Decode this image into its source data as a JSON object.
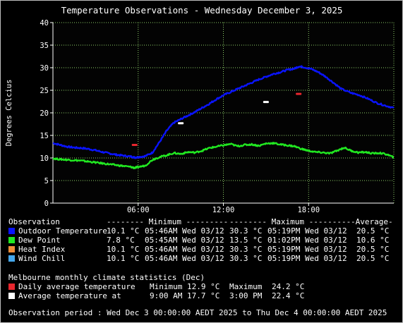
{
  "title": "Temperature Observations - Wednesday December 3, 2025",
  "colors": {
    "background": "#000000",
    "plot_background": "#030303",
    "grid": "#8fd06a",
    "axis": "#ffffff",
    "text": "#ffffff",
    "outdoor": "#0a14ff",
    "dewpoint": "#21e821",
    "heatindex": "#f08d38",
    "windchill": "#46a8ec",
    "daily_avg_marker": "#e8262e",
    "avg_temp_marker": "#ffffff"
  },
  "chart_data": {
    "type": "line",
    "title": "Temperature Observations - Wednesday December 3, 2025",
    "ylabel": "Degrees Celcius",
    "ylim": [
      0,
      40
    ],
    "y_ticks": [
      "0",
      "5",
      "10",
      "15",
      "20",
      "25",
      "30",
      "35",
      "40"
    ],
    "xlim_hours": [
      0,
      24
    ],
    "x_ticks": [
      {
        "hour": 6,
        "label": "06:00"
      },
      {
        "hour": 12,
        "label": "12:00"
      },
      {
        "hour": 18,
        "label": "18:00"
      }
    ],
    "grid": true,
    "series": [
      {
        "name": "Outdoor Temperature",
        "color": "#0a14ff",
        "points": [
          [
            0,
            13.3
          ],
          [
            0.5,
            12.9
          ],
          [
            1,
            12.5
          ],
          [
            1.5,
            12.3
          ],
          [
            2,
            12.2
          ],
          [
            2.5,
            12.0
          ],
          [
            3,
            11.7
          ],
          [
            3.5,
            11.3
          ],
          [
            4,
            11.0
          ],
          [
            4.5,
            10.7
          ],
          [
            5,
            10.5
          ],
          [
            5.5,
            10.3
          ],
          [
            5.77,
            10.1
          ],
          [
            6,
            10.2
          ],
          [
            6.5,
            10.4
          ],
          [
            7,
            11.2
          ],
          [
            7.5,
            13.5
          ],
          [
            8,
            16.0
          ],
          [
            8.5,
            17.8
          ],
          [
            9,
            18.6
          ],
          [
            9.5,
            19.4
          ],
          [
            10,
            20.2
          ],
          [
            10.5,
            21.1
          ],
          [
            11,
            22.0
          ],
          [
            11.5,
            23.0
          ],
          [
            12,
            23.9
          ],
          [
            12.5,
            24.6
          ],
          [
            13,
            25.3
          ],
          [
            13.5,
            26.0
          ],
          [
            14,
            26.7
          ],
          [
            14.5,
            27.4
          ],
          [
            15,
            28.0
          ],
          [
            15.5,
            28.6
          ],
          [
            16,
            29.0
          ],
          [
            16.5,
            29.5
          ],
          [
            17,
            29.8
          ],
          [
            17.32,
            30.3
          ],
          [
            17.7,
            30.1
          ],
          [
            18.2,
            29.7
          ],
          [
            18.7,
            29.0
          ],
          [
            19.2,
            28.0
          ],
          [
            19.7,
            26.8
          ],
          [
            20.3,
            25.3
          ],
          [
            21,
            24.4
          ],
          [
            21.6,
            23.9
          ],
          [
            22.2,
            23.1
          ],
          [
            22.8,
            22.2
          ],
          [
            23.4,
            21.6
          ],
          [
            24,
            21.1
          ]
        ]
      },
      {
        "name": "Dew Point",
        "color": "#21e821",
        "points": [
          [
            0,
            9.9
          ],
          [
            0.5,
            9.7
          ],
          [
            1,
            9.6
          ],
          [
            1.5,
            9.5
          ],
          [
            2,
            9.4
          ],
          [
            2.5,
            9.2
          ],
          [
            3,
            9.0
          ],
          [
            3.5,
            8.8
          ],
          [
            4,
            8.6
          ],
          [
            4.5,
            8.4
          ],
          [
            5,
            8.2
          ],
          [
            5.5,
            8.0
          ],
          [
            5.75,
            7.8
          ],
          [
            6,
            8.0
          ],
          [
            6.5,
            8.3
          ],
          [
            7,
            9.6
          ],
          [
            7.5,
            10.2
          ],
          [
            8,
            10.6
          ],
          [
            8.5,
            11.1
          ],
          [
            9,
            10.9
          ],
          [
            9.5,
            11.3
          ],
          [
            10,
            11.2
          ],
          [
            10.5,
            11.6
          ],
          [
            11,
            12.2
          ],
          [
            11.5,
            12.5
          ],
          [
            12,
            12.8
          ],
          [
            12.5,
            13.1
          ],
          [
            13,
            12.6
          ],
          [
            13.5,
            12.9
          ],
          [
            14,
            13.0
          ],
          [
            14.5,
            12.7
          ],
          [
            15,
            13.2
          ],
          [
            15.5,
            13.3
          ],
          [
            16,
            13.0
          ],
          [
            16.5,
            12.8
          ],
          [
            17,
            12.6
          ],
          [
            17.5,
            12.0
          ],
          [
            18,
            11.6
          ],
          [
            18.5,
            11.3
          ],
          [
            19,
            11.2
          ],
          [
            19.5,
            11.0
          ],
          [
            20,
            11.6
          ],
          [
            20.5,
            12.3
          ],
          [
            21,
            11.6
          ],
          [
            21.5,
            11.2
          ],
          [
            22,
            11.3
          ],
          [
            22.5,
            11.0
          ],
          [
            23,
            11.1
          ],
          [
            23.5,
            10.8
          ],
          [
            24,
            10.1
          ]
        ]
      }
    ],
    "markers": [
      {
        "name": "Daily average temperature",
        "color": "#e8262e",
        "hour": 5.75,
        "value": 12.9
      },
      {
        "name": "Daily average temperature",
        "color": "#e8262e",
        "hour": 17.3,
        "value": 24.2
      },
      {
        "name": "Average temperature at",
        "color": "#ffffff",
        "hour": 9.0,
        "value": 17.7
      },
      {
        "name": "Average temperature at",
        "color": "#ffffff",
        "hour": 15.0,
        "value": 22.4
      }
    ]
  },
  "stats": {
    "header": {
      "observation": "Observation",
      "minimum": "-------- Minimum ---------",
      "maximum": "-------- Maximum ---------",
      "average": "-Average-"
    },
    "rows": [
      {
        "name": "Outdoor Temperature",
        "color": "#0a14ff",
        "min": "10.1 °C",
        "min_time": "05:46AM Wed 03/12",
        "max": "30.3 °C",
        "max_time": "05:19PM Wed 03/12",
        "avg": "20.5 °C"
      },
      {
        "name": "Dew Point",
        "color": "#21e821",
        "min": "7.8 °C",
        "min_time": "05:45AM Wed 03/12",
        "max": "13.5 °C",
        "max_time": "01:02PM Wed 03/12",
        "avg": "10.6 °C"
      },
      {
        "name": "Heat Index",
        "color": "#f08d38",
        "min": "10.1 °C",
        "min_time": "05:46AM Wed 03/12",
        "max": "30.3 °C",
        "max_time": "05:19PM Wed 03/12",
        "avg": "20.5 °C"
      },
      {
        "name": "Wind Chill",
        "color": "#46a8ec",
        "min": "10.1 °C",
        "min_time": "05:46AM Wed 03/12",
        "max": "30.3 °C",
        "max_time": "05:19PM Wed 03/12",
        "avg": "20.5 °C"
      }
    ]
  },
  "climate": {
    "heading": "Melbourne monthly climate statistics (Dec)",
    "daily": {
      "label": "Daily average temperature",
      "min_label": "Minimum",
      "min": "12.9 °C",
      "max_label": "Maximum",
      "max": "24.2 °C",
      "color": "#e8262e"
    },
    "avg_at": {
      "label": "Average temperature at",
      "t1": "9:00 AM",
      "v1": "17.7 °C",
      "t2": "3:00 PM",
      "v2": "22.4 °C",
      "color": "#ffffff"
    }
  },
  "period": "Observation period : Wed Dec 3 00:00:00 AEDT 2025 to Thu Dec 4 00:00:00 AEDT 2025"
}
